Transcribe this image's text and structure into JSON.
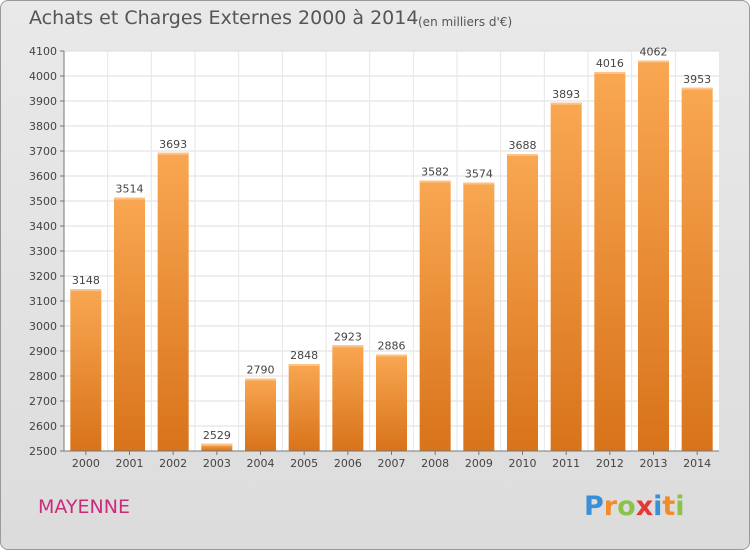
{
  "chart_data": {
    "type": "bar",
    "title": "Achats et Charges Externes 2000 à 2014",
    "subtitle": "(en milliers d'€)",
    "categories": [
      "2000",
      "2001",
      "2002",
      "2003",
      "2004",
      "2005",
      "2006",
      "2007",
      "2008",
      "2009",
      "2010",
      "2011",
      "2012",
      "2013",
      "2014"
    ],
    "values": [
      3148,
      3514,
      3693,
      2529,
      2790,
      2848,
      2923,
      2886,
      3582,
      3574,
      3688,
      3893,
      4016,
      4062,
      3953
    ],
    "ylim": [
      2500,
      4100
    ],
    "yticks": [
      2500,
      2600,
      2700,
      2800,
      2900,
      3000,
      3100,
      3200,
      3300,
      3400,
      3500,
      3600,
      3700,
      3800,
      3900,
      4000,
      4100
    ],
    "grid": true,
    "bar_color": "#f28c28"
  },
  "location": "MAYENNE",
  "logo": {
    "text": "Proxiti",
    "letters": [
      "P",
      "r",
      "o",
      "x",
      "i",
      "t",
      "i"
    ],
    "colors": [
      "#3b8fd6",
      "#f28c28",
      "#8bc34a",
      "#e53935",
      "#3b8fd6",
      "#f28c28",
      "#8bc34a"
    ]
  }
}
